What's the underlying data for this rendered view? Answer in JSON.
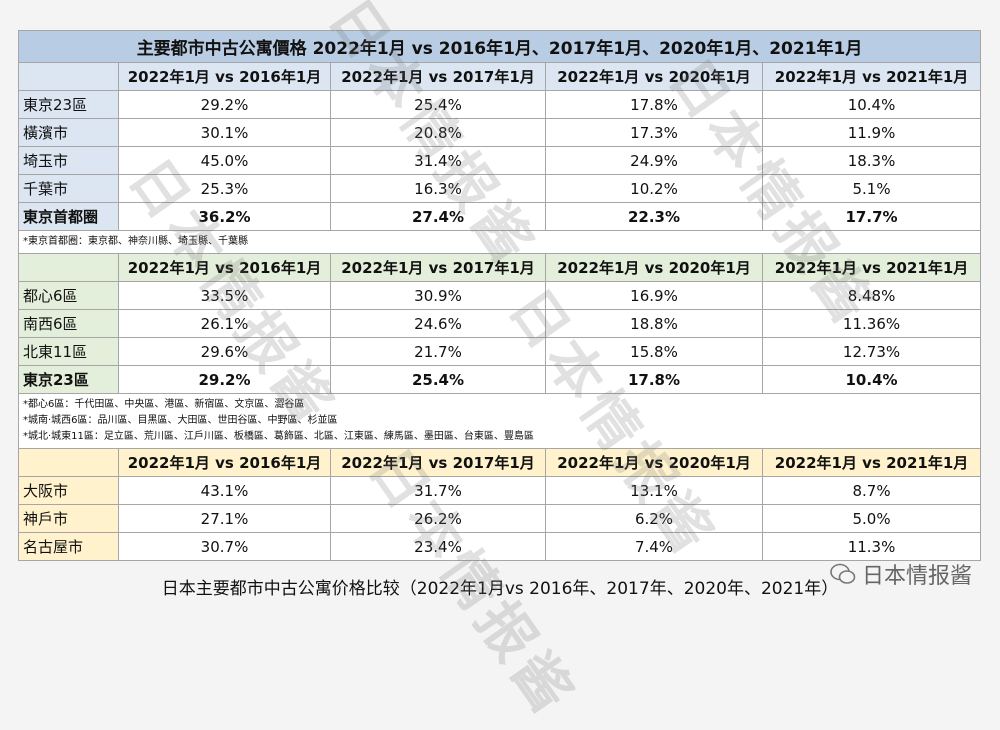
{
  "title": "主要都市中古公寓價格 2022年1月 vs 2016年1月、2017年1月、2020年1月、2021年1月",
  "sections": [
    {
      "header": [
        "2022年1月 vs 2016年1月",
        "2022年1月 vs 2017年1月",
        "2022年1月 vs 2020年1月",
        "2022年1月 vs 2021年1月"
      ],
      "rows": [
        [
          "東京23區",
          "29.2%",
          "25.4%",
          "17.8%",
          "10.4%"
        ],
        [
          "橫濱市",
          "30.1%",
          "20.8%",
          "17.3%",
          "11.9%"
        ],
        [
          "埼玉市",
          "45.0%",
          "31.4%",
          "24.9%",
          "18.3%"
        ],
        [
          "千葉市",
          "25.3%",
          "16.3%",
          "10.2%",
          "5.1%"
        ],
        [
          "東京首都圈",
          "36.2%",
          "27.4%",
          "22.3%",
          "17.7%"
        ]
      ],
      "bold_last_row": true,
      "color": "#dce6f2",
      "notes": [
        "*東京首都圈：東京都、神奈川縣、埼玉縣、千葉縣"
      ]
    },
    {
      "header": [
        "2022年1月 vs 2016年1月",
        "2022年1月 vs 2017年1月",
        "2022年1月 vs 2020年1月",
        "2022年1月 vs 2021年1月"
      ],
      "rows": [
        [
          "都心6區",
          "33.5%",
          "30.9%",
          "16.9%",
          "8.48%"
        ],
        [
          "南西6區",
          "26.1%",
          "24.6%",
          "18.8%",
          "11.36%"
        ],
        [
          "北東11區",
          "29.6%",
          "21.7%",
          "15.8%",
          "12.73%"
        ],
        [
          "東京23區",
          "29.2%",
          "25.4%",
          "17.8%",
          "10.4%"
        ]
      ],
      "bold_last_row": true,
      "color": "#e3efda",
      "notes": [
        "*都心6區：千代田區、中央區、港區、新宿區、文京區、澀谷區",
        "*城南·城西6區：品川區、目黑區、大田區、世田谷區、中野區、杉並區",
        "*城北·城東11區：足立區、荒川區、江戶川區、板橋區、葛飾區、北區、江東區、練馬區、墨田區、台東區、豐島區"
      ]
    },
    {
      "header": [
        "2022年1月 vs 2016年1月",
        "2022年1月 vs 2017年1月",
        "2022年1月 vs 2020年1月",
        "2022年1月 vs 2021年1月"
      ],
      "rows": [
        [
          "大阪市",
          "43.1%",
          "31.7%",
          "13.1%",
          "8.7%"
        ],
        [
          "神戶市",
          "27.1%",
          "26.2%",
          "6.2%",
          "5.0%"
        ],
        [
          "名古屋市",
          "30.7%",
          "23.4%",
          "7.4%",
          "11.3%"
        ]
      ],
      "bold_last_row": false,
      "color": "#fff2cc"
    }
  ],
  "caption": "日本主要都市中古公寓价格比较（2022年1月vs 2016年、2017年、2020年、2021年）",
  "watermark": "日本情报酱"
}
